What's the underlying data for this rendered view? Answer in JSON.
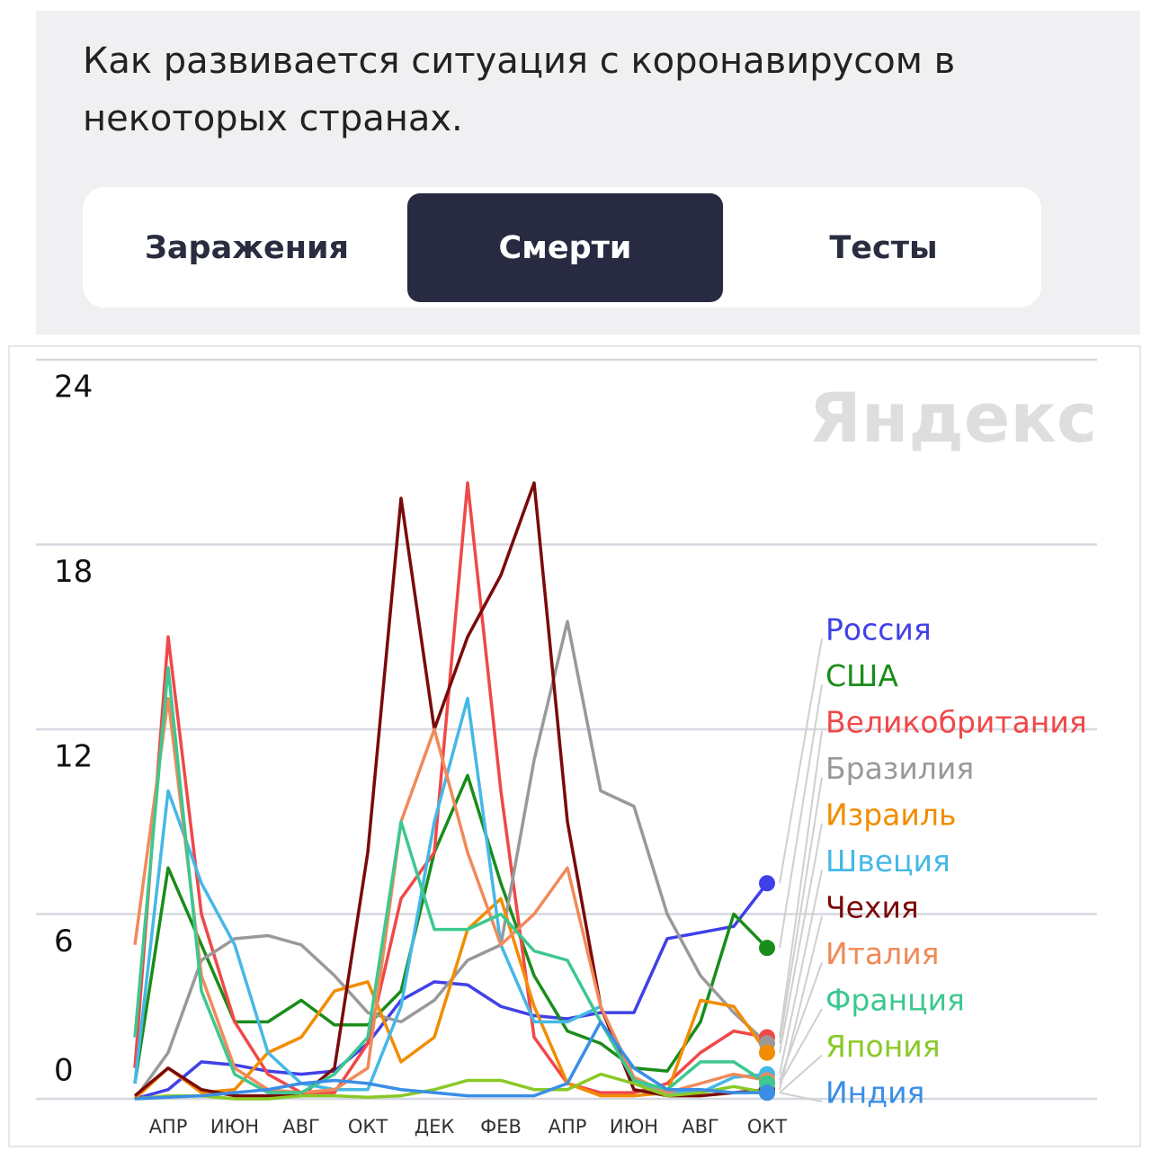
{
  "header": {
    "title": "Как развивается ситуация с коронавирусом в некоторых странах."
  },
  "tabs": {
    "items": [
      "Заражения",
      "Смерти",
      "Тесты"
    ],
    "active": 1
  },
  "chart_data": {
    "type": "line",
    "watermark": "Яндекс",
    "categories": [
      null,
      "АПР",
      null,
      "ИЮН",
      null,
      "АВГ",
      null,
      "ОКТ",
      null,
      "ДЕК",
      null,
      "ФЕВ",
      null,
      "АПР",
      null,
      "ИЮН",
      null,
      "АВГ",
      null,
      "ОКТ"
    ],
    "ylim": [
      0,
      24
    ],
    "yticks": [
      0,
      6,
      12,
      18,
      24
    ],
    "grid": true,
    "series": [
      {
        "name": "Россия",
        "color": "#4040e8",
        "values": [
          0,
          0.3,
          1.2,
          1.1,
          0.9,
          0.8,
          0.9,
          1.8,
          3.2,
          3.8,
          3.7,
          3.0,
          2.7,
          2.6,
          2.8,
          2.8,
          5.2,
          5.4,
          5.6,
          7.0
        ]
      },
      {
        "name": "США",
        "color": "#1a8c1a",
        "values": [
          0.5,
          7.5,
          5.0,
          2.5,
          2.5,
          3.2,
          2.4,
          2.4,
          3.5,
          8.0,
          10.5,
          7.0,
          4.0,
          2.2,
          1.8,
          1.0,
          0.9,
          2.5,
          6.0,
          4.9
        ]
      },
      {
        "name": "Великобритания",
        "color": "#f04848",
        "values": [
          1,
          15,
          6,
          2.5,
          0.8,
          0.2,
          0.2,
          1.8,
          6.5,
          8,
          20,
          10,
          2,
          0.5,
          0.2,
          0.2,
          0.5,
          1.5,
          2.2,
          2.0
        ]
      },
      {
        "name": "Бразилия",
        "color": "#999999",
        "values": [
          0,
          1.5,
          4.5,
          5.2,
          5.3,
          5.0,
          4.0,
          2.8,
          2.5,
          3.2,
          4.5,
          5.0,
          11,
          15.5,
          10,
          9.5,
          6.0,
          4.0,
          2.8,
          1.8
        ]
      },
      {
        "name": "Израиль",
        "color": "#f28c00",
        "values": [
          0,
          1.0,
          0.2,
          0.3,
          1.5,
          2.0,
          3.5,
          3.8,
          1.2,
          2.0,
          5.5,
          6.5,
          3.0,
          0.5,
          0.1,
          0.1,
          0.2,
          3.2,
          3.0,
          1.5
        ]
      },
      {
        "name": "Швеция",
        "color": "#45b8e6",
        "values": [
          0.5,
          10,
          7,
          5,
          1.5,
          0.5,
          0.3,
          0.3,
          3,
          9,
          13,
          5,
          2.5,
          2.5,
          3.0,
          0.5,
          0.2,
          0.2,
          0.7,
          0.8
        ]
      },
      {
        "name": "Чехия",
        "color": "#7a0a0a",
        "values": [
          0.1,
          1.0,
          0.3,
          0.1,
          0.1,
          0.1,
          1.0,
          8,
          19.5,
          12,
          15,
          17,
          20,
          9,
          3,
          0.3,
          0.1,
          0.1,
          0.2,
          0.3
        ]
      },
      {
        "name": "Италия",
        "color": "#f08a5a",
        "values": [
          5,
          13,
          4,
          1,
          0.3,
          0.2,
          0.3,
          1,
          9,
          12,
          8,
          5,
          6,
          7.5,
          3,
          0.7,
          0.2,
          0.5,
          0.8,
          0.6
        ]
      },
      {
        "name": "Франция",
        "color": "#3cc890",
        "values": [
          2,
          14,
          3.5,
          0.8,
          0.2,
          0.2,
          0.8,
          2,
          9,
          5.5,
          5.5,
          6,
          4.8,
          4.5,
          2.5,
          0.6,
          0.3,
          1.2,
          1.2,
          0.5
        ]
      },
      {
        "name": "Япония",
        "color": "#8ac926",
        "values": [
          0,
          0.1,
          0.1,
          0,
          0,
          0.1,
          0.1,
          0.05,
          0.1,
          0.3,
          0.6,
          0.6,
          0.3,
          0.3,
          0.8,
          0.5,
          0.1,
          0.2,
          0.4,
          0.2
        ]
      },
      {
        "name": "Индия",
        "color": "#3a8ee6",
        "values": [
          0,
          0.05,
          0.1,
          0.2,
          0.3,
          0.5,
          0.6,
          0.5,
          0.3,
          0.2,
          0.1,
          0.1,
          0.1,
          0.5,
          2.5,
          1.0,
          0.3,
          0.3,
          0.2,
          0.2
        ]
      }
    ]
  }
}
